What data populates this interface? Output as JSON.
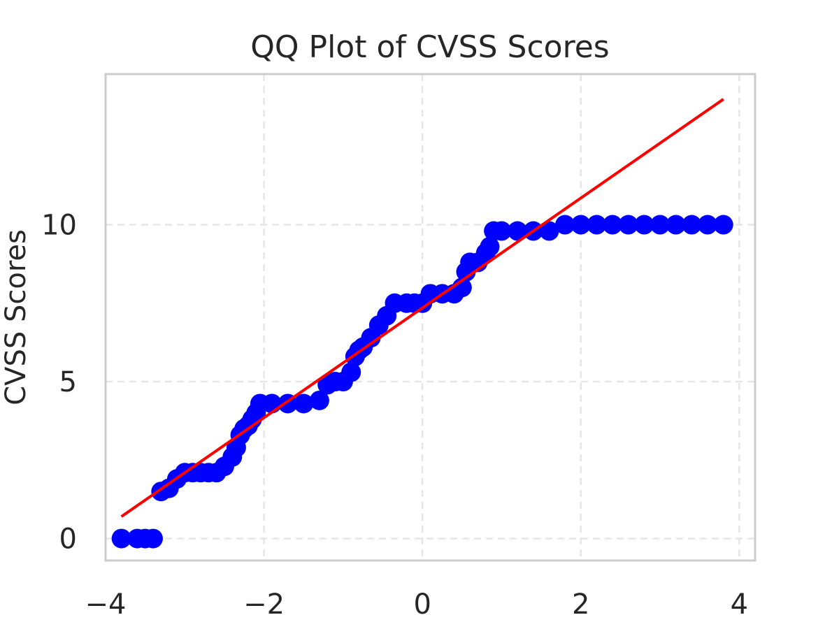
{
  "chart_data": {
    "type": "scatter",
    "title": "QQ Plot of CVSS Scores",
    "xlabel": "",
    "ylabel": "CVSS Scores",
    "xlim": [
      -4.0,
      4.2
    ],
    "ylim": [
      -0.7,
      14.8
    ],
    "x_ticks": [
      -4,
      -2,
      0,
      2,
      4
    ],
    "x_tick_labels": [
      "−4",
      "−2",
      "0",
      "2",
      "4"
    ],
    "y_ticks": [
      0,
      5,
      10
    ],
    "y_tick_labels": [
      "0",
      "5",
      "10"
    ],
    "grid": true,
    "legend": "none",
    "colors": {
      "points": "#0000ff",
      "fit_line": "#ff0000",
      "grid": "#e6e6e6",
      "frame": "#cccccc",
      "text": "#262626"
    },
    "series": [
      {
        "kind": "points",
        "points": [
          [
            -3.8,
            0.0
          ],
          [
            -3.6,
            0.0
          ],
          [
            -3.5,
            0.0
          ],
          [
            -3.4,
            0.0
          ],
          [
            -3.3,
            1.5
          ],
          [
            -3.2,
            1.6
          ],
          [
            -3.1,
            1.9
          ],
          [
            -3.0,
            2.1
          ],
          [
            -2.9,
            2.1
          ],
          [
            -2.8,
            2.1
          ],
          [
            -2.7,
            2.1
          ],
          [
            -2.6,
            2.1
          ],
          [
            -2.5,
            2.3
          ],
          [
            -2.4,
            2.6
          ],
          [
            -2.35,
            2.9
          ],
          [
            -2.3,
            3.3
          ],
          [
            -2.25,
            3.5
          ],
          [
            -2.2,
            3.6
          ],
          [
            -2.15,
            3.8
          ],
          [
            -2.1,
            4.0
          ],
          [
            -2.05,
            4.3
          ],
          [
            -1.9,
            4.3
          ],
          [
            -1.7,
            4.3
          ],
          [
            -1.5,
            4.3
          ],
          [
            -1.3,
            4.4
          ],
          [
            -1.2,
            4.9
          ],
          [
            -1.1,
            5.0
          ],
          [
            -1.0,
            5.0
          ],
          [
            -0.9,
            5.3
          ],
          [
            -0.85,
            5.8
          ],
          [
            -0.8,
            6.0
          ],
          [
            -0.75,
            6.1
          ],
          [
            -0.65,
            6.4
          ],
          [
            -0.55,
            6.8
          ],
          [
            -0.45,
            7.1
          ],
          [
            -0.35,
            7.5
          ],
          [
            -0.2,
            7.5
          ],
          [
            -0.1,
            7.5
          ],
          [
            0.0,
            7.5
          ],
          [
            0.1,
            7.8
          ],
          [
            0.25,
            7.8
          ],
          [
            0.4,
            7.8
          ],
          [
            0.5,
            8.0
          ],
          [
            0.55,
            8.5
          ],
          [
            0.6,
            8.8
          ],
          [
            0.7,
            8.8
          ],
          [
            0.8,
            9.1
          ],
          [
            0.85,
            9.3
          ],
          [
            0.9,
            9.8
          ],
          [
            1.0,
            9.8
          ],
          [
            1.2,
            9.8
          ],
          [
            1.4,
            9.8
          ],
          [
            1.6,
            9.8
          ],
          [
            1.8,
            10.0
          ],
          [
            2.0,
            10.0
          ],
          [
            2.2,
            10.0
          ],
          [
            2.4,
            10.0
          ],
          [
            2.6,
            10.0
          ],
          [
            2.8,
            10.0
          ],
          [
            3.0,
            10.0
          ],
          [
            3.2,
            10.0
          ],
          [
            3.4,
            10.0
          ],
          [
            3.6,
            10.0
          ],
          [
            3.8,
            10.0
          ]
        ]
      },
      {
        "kind": "line",
        "points": [
          [
            -3.8,
            0.7
          ],
          [
            3.8,
            14.0
          ]
        ]
      }
    ]
  }
}
